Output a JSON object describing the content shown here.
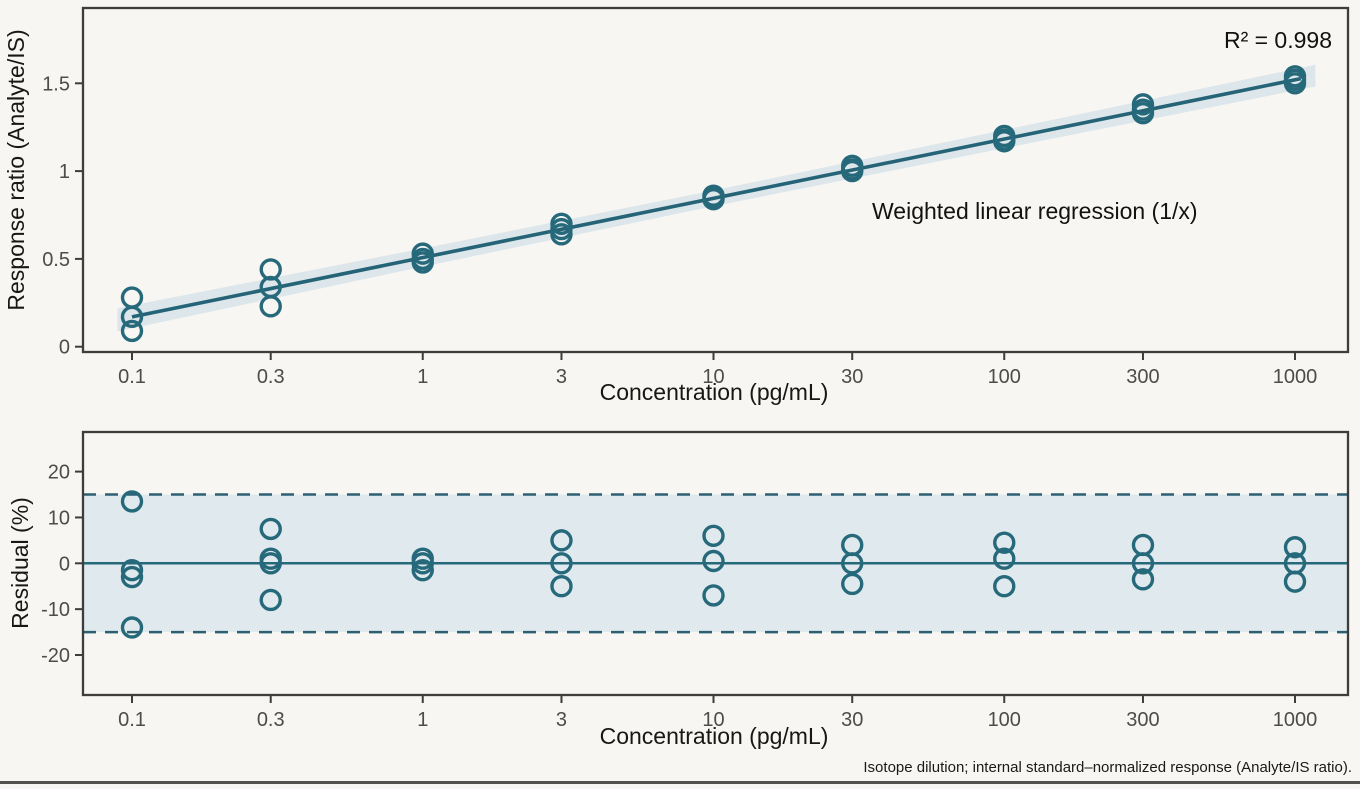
{
  "figure": {
    "r2_annotation": "R² = 0.998",
    "regression_label": "Weighted linear regression (1/x)",
    "footnote": "Isotope dilution; internal standard–normalized response (Analyte/IS ratio)."
  },
  "colors": {
    "teal": "#26697b",
    "regression_line": "#256477",
    "confidence_band": "#d9e4ea",
    "residual_band": "#dce7ec",
    "limit_line": "#2d5f73",
    "frame": "#3d3d3b",
    "tick_text": "#4c4c4a",
    "background": "#f7f6f3"
  },
  "chart_data": [
    {
      "type": "scatter",
      "panel": "calibration",
      "title": "",
      "xlabel": "Concentration (pg/mL)",
      "ylabel": "Response ratio (Analyte/IS)",
      "x_scale": "log10",
      "x_ticks": {
        "values": [
          0.1,
          0.3,
          1,
          3,
          10,
          30,
          100,
          300,
          1000
        ],
        "labels": [
          "0.1",
          "0.3",
          "1",
          "3",
          "10",
          "30",
          "100",
          "300",
          "1000"
        ]
      },
      "y_ticks": {
        "values": [
          0,
          0.5,
          1,
          1.5
        ],
        "labels": [
          "0",
          "0.5",
          "1",
          "1.5"
        ]
      },
      "ylim": [
        -0.03,
        1.93
      ],
      "xlim_log": [
        -1.1685,
        3.182
      ],
      "grid": false,
      "legend": "none",
      "regression": {
        "model": "weighted linear (1/x)",
        "value_at_1pgml": 0.5075,
        "slope_per_decade": 0.3375,
        "r_squared": 0.998,
        "line_log_range": [
          -1.0,
          3.02
        ],
        "band_halfwidth_stops": [
          [
            -1.05,
            0.066
          ],
          [
            0,
            0.052
          ],
          [
            1,
            0.045
          ],
          [
            2,
            0.052
          ],
          [
            3.07,
            0.062
          ]
        ]
      },
      "points": [
        {
          "x": 0.1,
          "y": [
            0.28,
            0.17,
            0.09
          ]
        },
        {
          "x": 0.3,
          "y": [
            0.44,
            0.34,
            0.23
          ]
        },
        {
          "x": 1,
          "y": [
            0.53,
            0.5,
            0.48
          ]
        },
        {
          "x": 3,
          "y": [
            0.7,
            0.67,
            0.64
          ]
        },
        {
          "x": 10,
          "y": [
            0.86,
            0.85,
            0.84
          ]
        },
        {
          "x": 30,
          "y": [
            1.03,
            1.01,
            1.0
          ]
        },
        {
          "x": 100,
          "y": [
            1.2,
            1.18,
            1.17
          ]
        },
        {
          "x": 300,
          "y": [
            1.38,
            1.35,
            1.33
          ]
        },
        {
          "x": 1000,
          "y": [
            1.54,
            1.52,
            1.5
          ]
        }
      ],
      "annotations": [
        "R² = 0.998",
        "Weighted linear regression (1/x)"
      ]
    },
    {
      "type": "scatter",
      "panel": "residuals",
      "title": "",
      "xlabel": "Concentration (pg/mL)",
      "ylabel": "Residual (%)",
      "x_scale": "log10",
      "x_ticks": {
        "values": [
          0.1,
          0.3,
          1,
          3,
          10,
          30,
          100,
          300,
          1000
        ],
        "labels": [
          "0.1",
          "0.3",
          "1",
          "3",
          "10",
          "30",
          "100",
          "300",
          "1000"
        ]
      },
      "y_ticks": {
        "values": [
          20,
          10,
          0,
          -10,
          -20
        ],
        "labels": [
          "20",
          "10",
          "0",
          "-10",
          "-20"
        ]
      },
      "ylim": [
        -28.7,
        28.6
      ],
      "xlim_log": [
        -1.1685,
        3.182
      ],
      "grid": false,
      "zero_line": 0,
      "acceptance_limits": [
        -15,
        15
      ],
      "points": [
        {
          "x": 0.1,
          "y": [
            13.5,
            -1.5,
            -3,
            -14
          ]
        },
        {
          "x": 0.3,
          "y": [
            7.5,
            1,
            0,
            -8
          ]
        },
        {
          "x": 1,
          "y": [
            1,
            0,
            -1.5
          ]
        },
        {
          "x": 3,
          "y": [
            5,
            0,
            -5
          ]
        },
        {
          "x": 10,
          "y": [
            6,
            0.5,
            -7
          ]
        },
        {
          "x": 30,
          "y": [
            4,
            0,
            -4.5
          ]
        },
        {
          "x": 100,
          "y": [
            4.5,
            1,
            -5
          ]
        },
        {
          "x": 300,
          "y": [
            4,
            0,
            -3.5
          ]
        },
        {
          "x": 1000,
          "y": [
            3.5,
            0,
            -4
          ]
        }
      ]
    }
  ]
}
